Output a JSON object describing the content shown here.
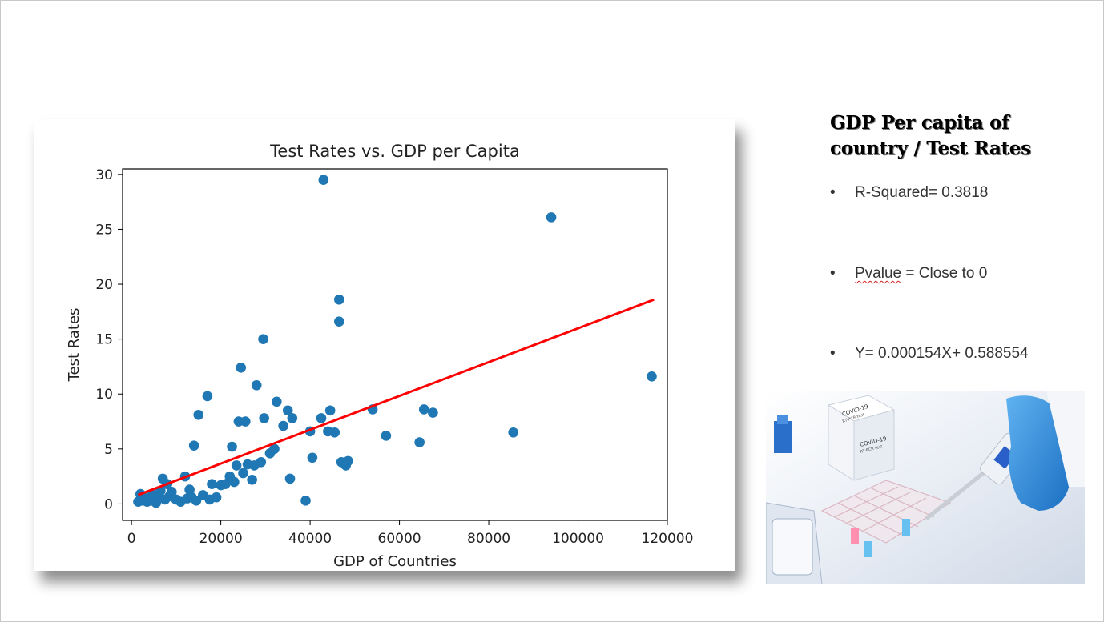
{
  "sidebar": {
    "title_line1": "GDP Per capita of",
    "title_line2": "country / Test Rates",
    "bullets": [
      {
        "label": "R-Squared= 0.3818"
      },
      {
        "label_underlined": "Pvalue",
        "label_rest": " = Close to 0"
      },
      {
        "label": "Y= 0.000154X+ 0.588554"
      }
    ],
    "bullet_symbol": "•"
  },
  "photo": {
    "box_text_1": "COVID-19",
    "box_text_2": "RT-PCR test",
    "box_text_3": "COVID-19",
    "box_text_4": "RT-PCR test"
  },
  "colors": {
    "point": "#1f77b4",
    "regression_line": "#ff0000"
  },
  "chart_data": {
    "type": "scatter",
    "title": "Test Rates vs. GDP per Capita",
    "xlabel": "GDP of Countries",
    "ylabel": "Test Rates",
    "xlim": [
      -2000,
      120000
    ],
    "ylim": [
      -1.5,
      30.5
    ],
    "xticks": [
      0,
      20000,
      40000,
      60000,
      80000,
      100000,
      120000
    ],
    "yticks": [
      0,
      5,
      10,
      15,
      20,
      25,
      30
    ],
    "grid": false,
    "points": [
      {
        "x": 1500,
        "y": 0.2
      },
      {
        "x": 2000,
        "y": 0.9
      },
      {
        "x": 2500,
        "y": 0.3
      },
      {
        "x": 3000,
        "y": 0.5
      },
      {
        "x": 3500,
        "y": 0.2
      },
      {
        "x": 4000,
        "y": 0.6
      },
      {
        "x": 4500,
        "y": 0.3
      },
      {
        "x": 5000,
        "y": 0.8
      },
      {
        "x": 5500,
        "y": 0.1
      },
      {
        "x": 6000,
        "y": 0.5
      },
      {
        "x": 6500,
        "y": 1.2
      },
      {
        "x": 7000,
        "y": 2.3
      },
      {
        "x": 7500,
        "y": 0.4
      },
      {
        "x": 8000,
        "y": 1.8
      },
      {
        "x": 8500,
        "y": 0.7
      },
      {
        "x": 9000,
        "y": 1.1
      },
      {
        "x": 10000,
        "y": 0.4
      },
      {
        "x": 11000,
        "y": 0.2
      },
      {
        "x": 12000,
        "y": 2.5
      },
      {
        "x": 12500,
        "y": 0.5
      },
      {
        "x": 13000,
        "y": 1.3
      },
      {
        "x": 13500,
        "y": 0.6
      },
      {
        "x": 14000,
        "y": 5.3
      },
      {
        "x": 14500,
        "y": 0.3
      },
      {
        "x": 15000,
        "y": 8.1
      },
      {
        "x": 16000,
        "y": 0.8
      },
      {
        "x": 17000,
        "y": 9.8
      },
      {
        "x": 17500,
        "y": 0.4
      },
      {
        "x": 18000,
        "y": 1.8
      },
      {
        "x": 19000,
        "y": 0.6
      },
      {
        "x": 20000,
        "y": 1.7
      },
      {
        "x": 21000,
        "y": 1.8
      },
      {
        "x": 22000,
        "y": 2.5
      },
      {
        "x": 22500,
        "y": 5.2
      },
      {
        "x": 23000,
        "y": 2.0
      },
      {
        "x": 23500,
        "y": 3.5
      },
      {
        "x": 24000,
        "y": 7.5
      },
      {
        "x": 24500,
        "y": 12.4
      },
      {
        "x": 25000,
        "y": 2.8
      },
      {
        "x": 25500,
        "y": 7.5
      },
      {
        "x": 26000,
        "y": 3.6
      },
      {
        "x": 27000,
        "y": 2.2
      },
      {
        "x": 27500,
        "y": 3.5
      },
      {
        "x": 28000,
        "y": 10.8
      },
      {
        "x": 29000,
        "y": 3.8
      },
      {
        "x": 29500,
        "y": 15.0
      },
      {
        "x": 29700,
        "y": 7.8
      },
      {
        "x": 31000,
        "y": 4.6
      },
      {
        "x": 32000,
        "y": 5.0
      },
      {
        "x": 32500,
        "y": 9.3
      },
      {
        "x": 34000,
        "y": 7.1
      },
      {
        "x": 35000,
        "y": 8.5
      },
      {
        "x": 35500,
        "y": 2.3
      },
      {
        "x": 36000,
        "y": 7.8
      },
      {
        "x": 39000,
        "y": 0.3
      },
      {
        "x": 40000,
        "y": 6.6
      },
      {
        "x": 40500,
        "y": 4.2
      },
      {
        "x": 42500,
        "y": 7.8
      },
      {
        "x": 43000,
        "y": 29.5
      },
      {
        "x": 44000,
        "y": 6.6
      },
      {
        "x": 44500,
        "y": 8.5
      },
      {
        "x": 45500,
        "y": 6.5
      },
      {
        "x": 46500,
        "y": 18.6
      },
      {
        "x": 46500,
        "y": 16.6
      },
      {
        "x": 47000,
        "y": 3.8
      },
      {
        "x": 48000,
        "y": 3.5
      },
      {
        "x": 48500,
        "y": 3.9
      },
      {
        "x": 54000,
        "y": 8.6
      },
      {
        "x": 57000,
        "y": 6.2
      },
      {
        "x": 64500,
        "y": 5.6
      },
      {
        "x": 65500,
        "y": 8.6
      },
      {
        "x": 67500,
        "y": 8.3
      },
      {
        "x": 85500,
        "y": 6.5
      },
      {
        "x": 94000,
        "y": 26.1
      },
      {
        "x": 116500,
        "y": 11.6
      }
    ],
    "regression": {
      "x": [
        1500,
        117000
      ],
      "y": [
        0.82,
        18.6
      ]
    }
  }
}
